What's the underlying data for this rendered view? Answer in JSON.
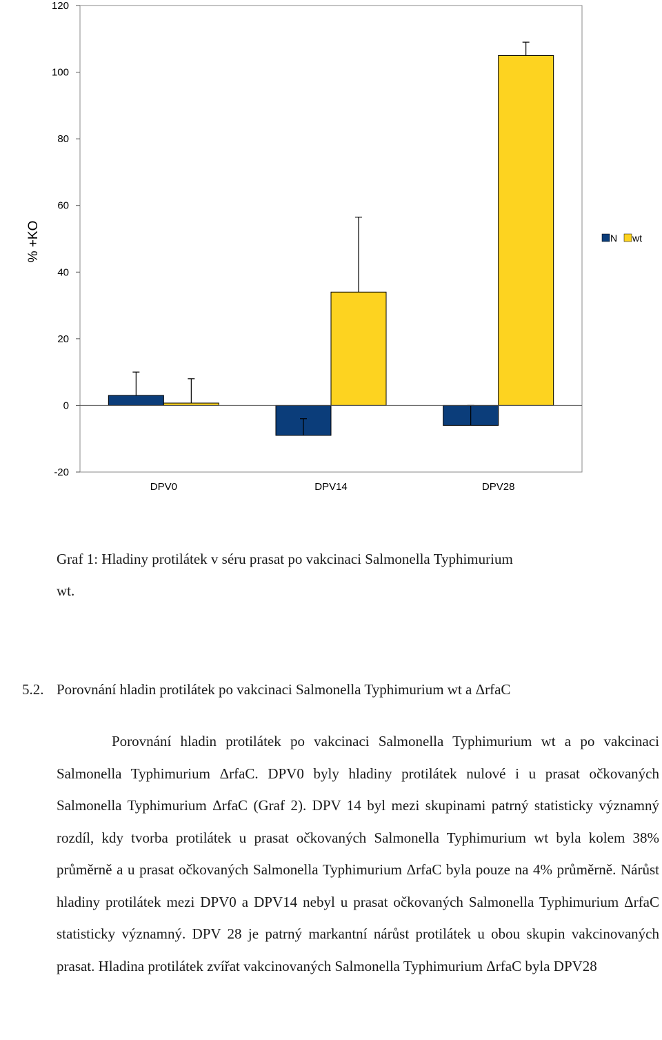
{
  "chart_data": {
    "type": "bar",
    "categories": [
      "DPV0",
      "DPV14",
      "DPV28"
    ],
    "series": [
      {
        "name": "N",
        "color": "#0b3d7a",
        "values": [
          3,
          -9,
          -6
        ],
        "error": [
          7,
          5,
          6
        ]
      },
      {
        "name": "wt",
        "color": "#fdd320",
        "values": [
          0.7,
          34,
          105
        ],
        "error": [
          7.3,
          22.5,
          4
        ]
      }
    ],
    "ylabel": "% +KO",
    "xlabel": "",
    "ylim": [
      -20,
      120
    ],
    "yticks": [
      -20,
      0,
      20,
      40,
      60,
      80,
      100,
      120
    ],
    "legend_position": "right",
    "grid": false
  },
  "document": {
    "caption_line1": "Graf 1: Hladiny protilátek v séru prasat po vakcinaci  Salmonella Typhimurium",
    "caption_line2": "wt.",
    "section_number": "5.2.",
    "section_title": "Porovnání hladin protilátek po vakcinaci Salmonella Typhimurium wt a ΔrfaC",
    "paragraph": "Porovnání hladin protilátek po vakcinaci  Salmonella Typhimurium wt a po vakcinaci  Salmonella Typhimurium ΔrfaC. DPV0 byly hladiny protilátek nulové i u prasat očkovaných Salmonella Typhimurium ΔrfaC (Graf 2). DPV 14 byl mezi skupinami patrný statisticky významný rozdíl, kdy tvorba protilátek u prasat očkovaných Salmonella Typhimurium wt byla kolem 38% průměrně a u prasat očkovaných Salmonella Typhimurium ΔrfaC byla pouze na 4% průměrně. Nárůst hladiny protilátek mezi DPV0 a DPV14 nebyl u prasat očkovaných Salmonella Typhimurium ΔrfaC statisticky významný. DPV 28 je patrný markantní nárůst protilátek u obou skupin vakcinovaných prasat. Hladina protilátek zvířat vakcinovaných Salmonella Typhimurium ΔrfaC byla DPV28"
  }
}
